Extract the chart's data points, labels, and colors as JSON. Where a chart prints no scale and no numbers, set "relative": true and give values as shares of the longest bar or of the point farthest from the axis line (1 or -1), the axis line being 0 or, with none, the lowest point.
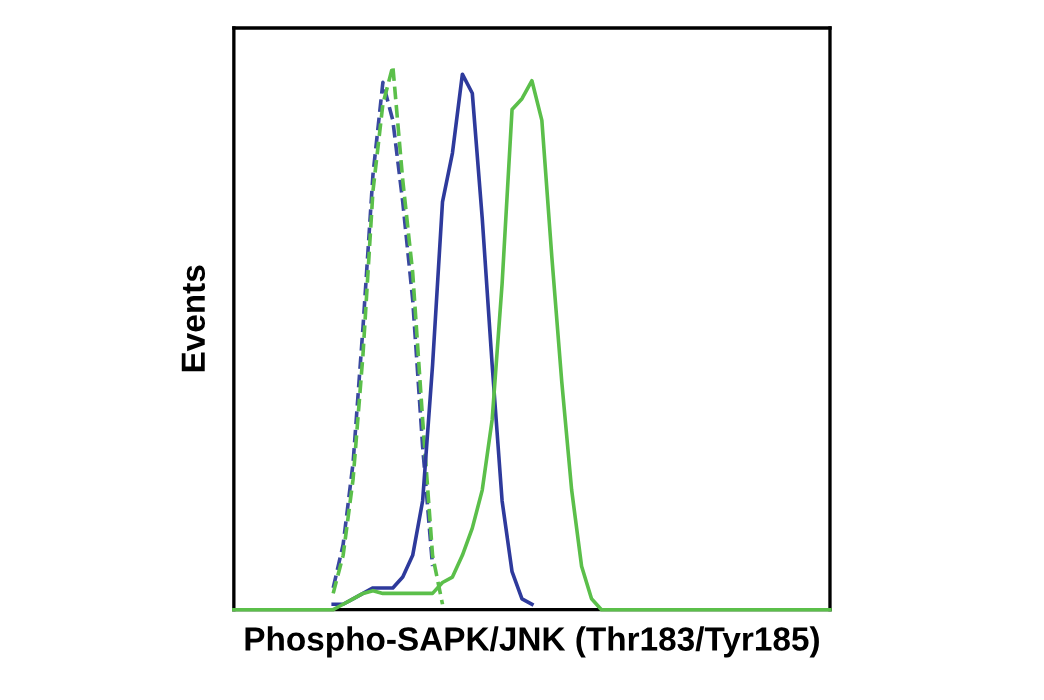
{
  "chart_data": {
    "type": "line",
    "relative": true,
    "xlabel": "Phospho-SAPK/JNK (Thr183/Tyr185)",
    "ylabel": "Events",
    "tick_labels": false,
    "grid": false,
    "legend": false,
    "categories": [
      null,
      null,
      null,
      null,
      null,
      null,
      null,
      null,
      null,
      null,
      null,
      null,
      null,
      null,
      null,
      null,
      null,
      null,
      null,
      null,
      null,
      null,
      null,
      null,
      null,
      null,
      null,
      null,
      null,
      null,
      null,
      null,
      null,
      null,
      null,
      null,
      null,
      null,
      null,
      null,
      null,
      null,
      null,
      null,
      null,
      null,
      null,
      null,
      null,
      null,
      null,
      null,
      null,
      null,
      null,
      null,
      null,
      null,
      null,
      null,
      null
    ],
    "series": [
      {
        "color": "#3a48a0",
        "line_style": "dashed",
        "values": [
          null,
          null,
          null,
          null,
          null,
          null,
          null,
          null,
          null,
          null,
          0.04,
          0.12,
          0.27,
          0.52,
          0.8,
          0.97,
          0.9,
          0.75,
          0.57,
          0.3,
          0.08,
          null,
          null,
          null,
          null,
          null,
          null,
          null,
          null,
          null,
          null,
          null,
          null,
          null,
          null,
          null,
          null,
          null,
          null,
          null,
          null,
          null,
          null,
          null,
          null,
          null,
          null,
          null,
          null,
          null,
          null,
          null,
          null,
          null,
          null,
          null,
          null,
          null,
          null,
          null,
          null
        ]
      },
      {
        "color": "#5bbf4a",
        "line_style": "dashed",
        "values": [
          null,
          null,
          null,
          null,
          null,
          null,
          null,
          null,
          null,
          null,
          0.03,
          0.1,
          0.24,
          0.47,
          0.77,
          0.93,
          1,
          0.79,
          0.62,
          0.35,
          0.1,
          0.01,
          null,
          null,
          null,
          null,
          null,
          null,
          null,
          null,
          null,
          null,
          null,
          null,
          null,
          null,
          null,
          null,
          null,
          null,
          null,
          null,
          null,
          null,
          null,
          null,
          null,
          null,
          null,
          null,
          null,
          null,
          null,
          null,
          null,
          null,
          null,
          null,
          null,
          null,
          null
        ]
      },
      {
        "color": "#2e3a9c",
        "line_style": "solid",
        "values": [
          null,
          null,
          null,
          null,
          null,
          null,
          null,
          null,
          null,
          null,
          0.01,
          0.01,
          0.02,
          0.03,
          0.04,
          0.04,
          0.04,
          0.06,
          0.1,
          0.2,
          0.45,
          0.75,
          0.84,
          0.985,
          0.95,
          0.72,
          0.45,
          0.2,
          0.07,
          0.02,
          0.01,
          null,
          null,
          null,
          null,
          null,
          null,
          null,
          null,
          null,
          null,
          null,
          null,
          null,
          null,
          null,
          null,
          null,
          null,
          null,
          null,
          null,
          null,
          null,
          null,
          null,
          null,
          null,
          null,
          null,
          null
        ]
      },
      {
        "color": "#5bbf4a",
        "line_style": "solid",
        "values": [
          0,
          0,
          0,
          0,
          0,
          0,
          0,
          0,
          0,
          0,
          0,
          0.01,
          0.02,
          0.03,
          0.035,
          0.03,
          0.03,
          0.03,
          0.03,
          0.03,
          0.03,
          0.05,
          0.06,
          0.1,
          0.15,
          0.22,
          0.35,
          0.6,
          0.92,
          0.94,
          0.973,
          0.9,
          0.65,
          0.42,
          0.22,
          0.08,
          0.02,
          0,
          0,
          0,
          0,
          0,
          0,
          0,
          0,
          0,
          0,
          0,
          0,
          0,
          0,
          0,
          0,
          0,
          0,
          0,
          0,
          0,
          0,
          0,
          0
        ]
      }
    ]
  }
}
